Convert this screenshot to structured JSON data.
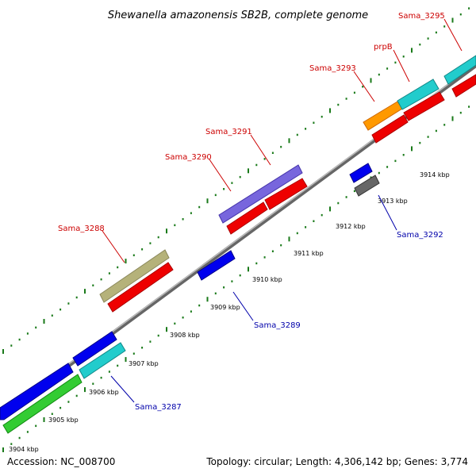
{
  "title": "Shewanella amazonensis SB2B, complete genome",
  "footer": {
    "accession": "Accession: NC_008700",
    "stats": "Topology: circular; Length: 4,306,142 bp; Genes: 3,774"
  },
  "colors": {
    "label_forward": "#cc0000",
    "label_reverse": "#0000aa",
    "backbone": "#888888",
    "ticks": "#1a7a1a",
    "cds_red": "#ff0000",
    "blue": "#0000ee",
    "cyan": "#22cccc",
    "green": "#33cc33",
    "olive": "#b5b27a",
    "purple": "#7766dd",
    "orange": "#ff9900",
    "gray": "#666666"
  },
  "tick_labels": [
    "3904 kbp",
    "3905 kbp",
    "3906 kbp",
    "3907 kbp",
    "3908 kbp",
    "3909 kbp",
    "3910 kbp",
    "3911 kbp",
    "3912 kbp",
    "3913 kbp",
    "3914 kbp"
  ],
  "forward_labels": [
    "Sama_3295",
    "prpB",
    "Sama_3293",
    "Sama_3291",
    "Sama_3290",
    "Sama_3288"
  ],
  "reverse_labels": [
    "Sama_3292",
    "Sama_3289",
    "Sama_3287"
  ]
}
